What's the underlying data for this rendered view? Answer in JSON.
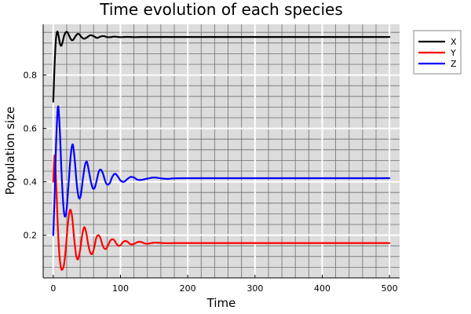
{
  "chart_data": {
    "type": "line",
    "title": "Time evolution of each species",
    "xlabel": "Time",
    "ylabel": "Population size",
    "xlim": [
      -15,
      515
    ],
    "ylim": [
      0.04,
      0.99
    ],
    "x_ticks": [
      0,
      100,
      200,
      300,
      400,
      500
    ],
    "y_ticks": [
      0.2,
      0.4,
      0.6,
      0.8
    ],
    "x_minor_step": 20,
    "y_minor_step": 0.04,
    "grid": true,
    "background": "#dcdcdc",
    "legend": "top-right",
    "series": [
      {
        "name": "X",
        "color": "#000000",
        "x": [
          0,
          2,
          4,
          6,
          8,
          10,
          12,
          14,
          16,
          18,
          20,
          22,
          24,
          26,
          28,
          30,
          33,
          36,
          39,
          42,
          46,
          50,
          55,
          60,
          65,
          70,
          75,
          80,
          85,
          90,
          95,
          100,
          110,
          120,
          130,
          140,
          150,
          160,
          170,
          180,
          190,
          200,
          250,
          300,
          350,
          400,
          450,
          500
        ],
        "values": [
          0.7,
          0.84,
          0.935,
          0.963,
          0.945,
          0.917,
          0.91,
          0.925,
          0.946,
          0.958,
          0.962,
          0.957,
          0.945,
          0.935,
          0.93,
          0.933,
          0.945,
          0.954,
          0.952,
          0.942,
          0.936,
          0.941,
          0.949,
          0.946,
          0.939,
          0.944,
          0.946,
          0.942,
          0.942,
          0.944,
          0.943,
          0.942,
          0.943,
          0.942,
          0.9425,
          0.9425,
          0.9425,
          0.9425,
          0.9425,
          0.9425,
          0.9425,
          0.9425,
          0.9425,
          0.9425,
          0.9425,
          0.9425,
          0.9425,
          0.9425
        ]
      },
      {
        "name": "Y",
        "color": "#ff0000",
        "x": [
          0,
          1,
          2,
          3,
          5,
          7,
          9,
          11,
          13,
          16,
          19,
          22,
          25,
          28,
          31,
          34,
          37,
          40,
          43,
          46,
          49,
          52,
          55,
          58,
          61,
          64,
          67,
          70,
          73,
          76,
          79,
          82,
          85,
          88,
          91,
          94,
          97,
          100,
          103,
          106,
          110,
          115,
          120,
          125,
          130,
          135,
          140,
          150,
          160,
          170,
          180,
          200,
          250,
          300,
          350,
          400,
          450,
          500
        ],
        "values": [
          0.4,
          0.46,
          0.5,
          0.47,
          0.35,
          0.22,
          0.13,
          0.085,
          0.07,
          0.09,
          0.16,
          0.25,
          0.295,
          0.27,
          0.19,
          0.125,
          0.11,
          0.145,
          0.2,
          0.23,
          0.21,
          0.165,
          0.135,
          0.13,
          0.155,
          0.19,
          0.2,
          0.19,
          0.165,
          0.15,
          0.15,
          0.165,
          0.18,
          0.185,
          0.18,
          0.168,
          0.16,
          0.162,
          0.172,
          0.178,
          0.176,
          0.166,
          0.167,
          0.174,
          0.175,
          0.17,
          0.168,
          0.172,
          0.171,
          0.17,
          0.1705,
          0.1705,
          0.1705,
          0.1705,
          0.1705,
          0.1705,
          0.1705,
          0.1705
        ]
      },
      {
        "name": "Z",
        "color": "#0000ff",
        "x": [
          0,
          2,
          4,
          6,
          7,
          8,
          10,
          12,
          14,
          16,
          18,
          20,
          23,
          26,
          29,
          32,
          35,
          38,
          41,
          44,
          47,
          50,
          53,
          56,
          59,
          62,
          65,
          68,
          71,
          74,
          77,
          80,
          84,
          88,
          92,
          96,
          100,
          105,
          110,
          115,
          120,
          125,
          130,
          140,
          150,
          160,
          170,
          180,
          200,
          250,
          300,
          350,
          400,
          450,
          500
        ],
        "values": [
          0.2,
          0.35,
          0.53,
          0.65,
          0.68,
          0.67,
          0.58,
          0.45,
          0.35,
          0.285,
          0.27,
          0.3,
          0.4,
          0.5,
          0.54,
          0.48,
          0.39,
          0.34,
          0.35,
          0.41,
          0.46,
          0.475,
          0.44,
          0.4,
          0.375,
          0.38,
          0.41,
          0.44,
          0.445,
          0.43,
          0.405,
          0.39,
          0.395,
          0.42,
          0.43,
          0.42,
          0.405,
          0.4,
          0.41,
          0.418,
          0.416,
          0.408,
          0.407,
          0.412,
          0.416,
          0.413,
          0.411,
          0.413,
          0.4135,
          0.4135,
          0.4135,
          0.4135,
          0.4135,
          0.4135,
          0.4135
        ]
      }
    ]
  }
}
